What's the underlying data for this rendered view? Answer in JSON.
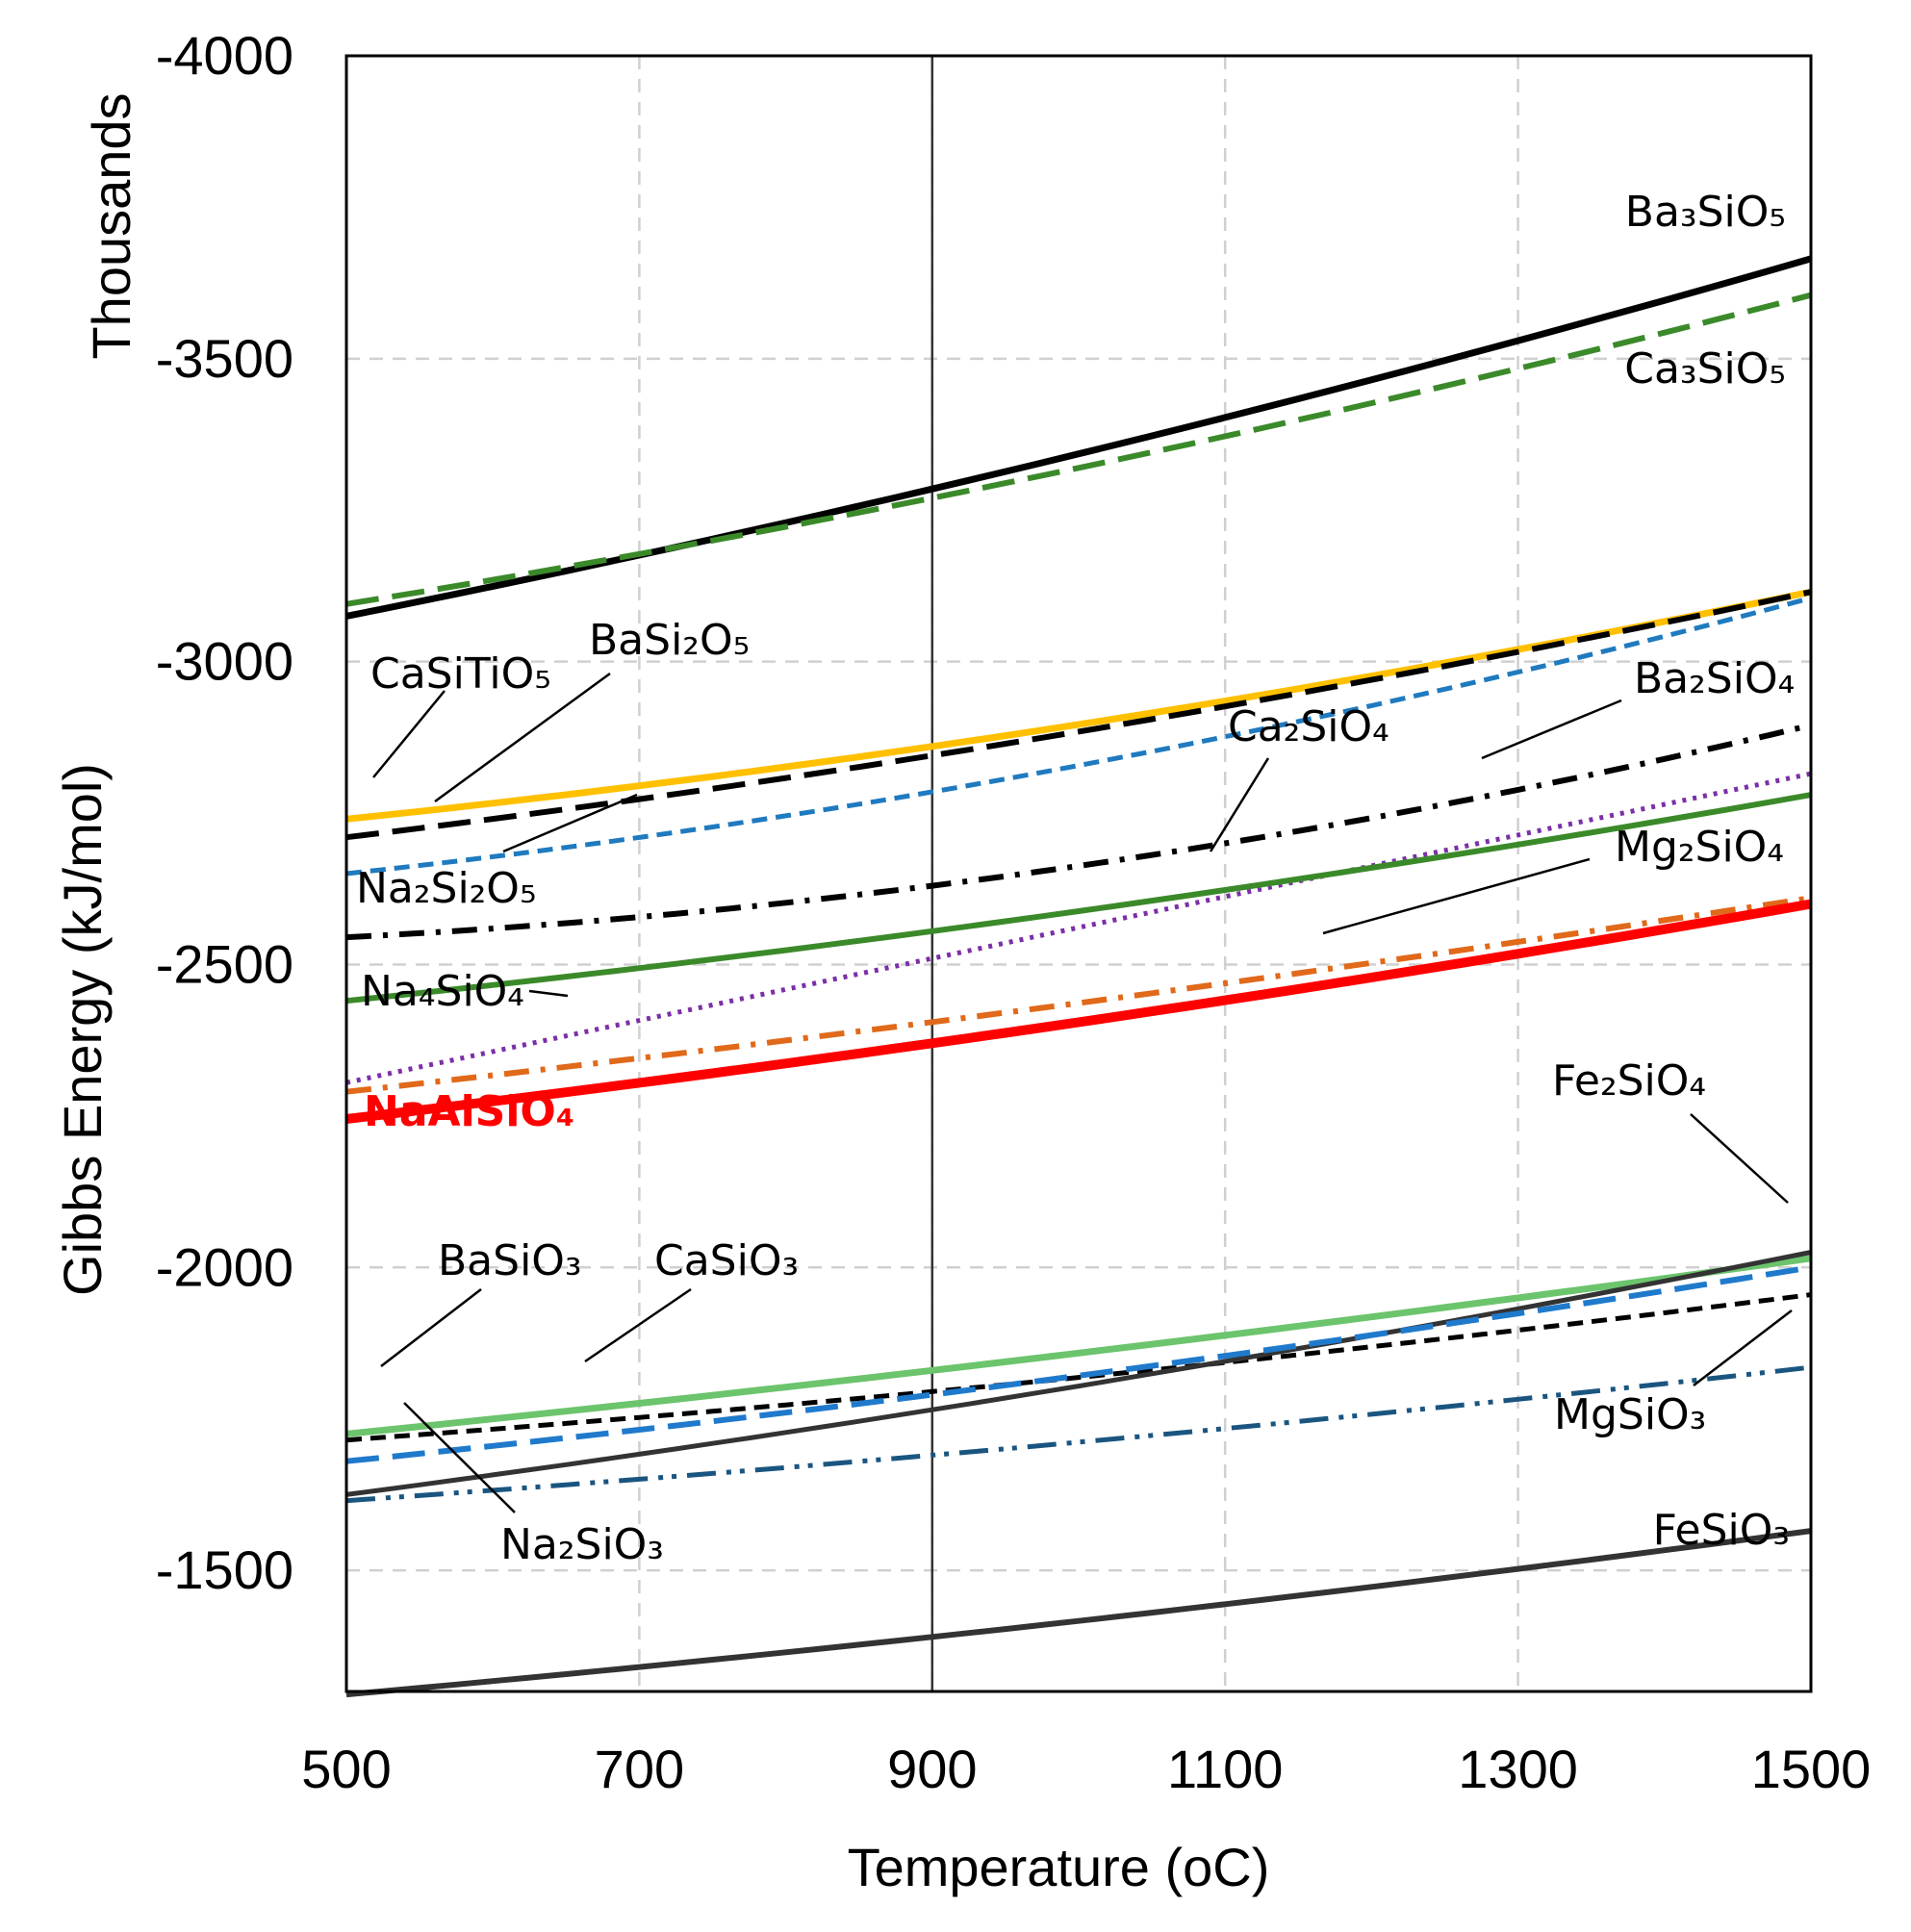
{
  "chart_data": {
    "type": "line",
    "title": "",
    "xlabel": "Temperature",
    "xlabel_unit": "(oC)",
    "ylabel": "Gibbs Energy (kJ/mol)",
    "y_multiplier_label": "Thousands",
    "xlim": [
      500,
      1500
    ],
    "ylim": [
      -1300,
      -4000
    ],
    "x_ticks": [
      500,
      700,
      900,
      1100,
      1300,
      1500
    ],
    "y_ticks": [
      -4000,
      -3500,
      -3000,
      -2500,
      -2000,
      -1500
    ],
    "grid": true,
    "reference_line_x": 900,
    "x": [
      500,
      900,
      1500
    ],
    "series": [
      {
        "name": "Ba3SiO5",
        "label": "Ba₃SiO₅",
        "values": [
          -3075,
          -3285,
          -3665
        ],
        "color": "#000000",
        "dash": "solid",
        "width": 7
      },
      {
        "name": "Ca3SiO5",
        "label": "Ca₃SiO₅",
        "values": [
          -3095,
          -3270,
          -3605
        ],
        "color": "#3b8a2a",
        "dash": "longdash",
        "width": 6
      },
      {
        "name": "CaSiTiO5",
        "label": "CaSiTiO₅",
        "values": [
          -2740,
          -2860,
          -3115
        ],
        "color": "#ffc000",
        "dash": "solid",
        "width": 7
      },
      {
        "name": "BaSi2O5",
        "label": "BaSi₂O₅",
        "values": [
          -2710,
          -2845,
          -3115
        ],
        "color": "#000000",
        "dash": "longdash",
        "width": 6
      },
      {
        "name": "Na2Si2O5",
        "label": "Na₂Si₂O₅",
        "values": [
          -2650,
          -2785,
          -3105
        ],
        "color": "#1f7abf",
        "dash": "dash",
        "width": 5
      },
      {
        "name": "Ba2SiO4",
        "label": "Ba₂SiO₄",
        "values": [
          -2545,
          -2630,
          -2895
        ],
        "color": "#000000",
        "dash": "dashdot",
        "width": 6
      },
      {
        "name": "Na4SiO4",
        "label": "Na₄SiO₄",
        "values": [
          -2305,
          -2510,
          -2815
        ],
        "color": "#7b2fa8",
        "dash": "dot",
        "width": 5
      },
      {
        "name": "Ca2SiO4",
        "label": "Ca₂SiO₄",
        "values": [
          -2440,
          -2555,
          -2780
        ],
        "color": "#3b8a2a",
        "dash": "solid",
        "width": 6
      },
      {
        "name": "Mg2SiO4",
        "label": "Mg₂SiO₄",
        "values": [
          -2290,
          -2405,
          -2610
        ],
        "color": "#e0691a",
        "dash": "dashdot",
        "width": 6
      },
      {
        "name": "NaAlSiO4",
        "label": "NaAlSiO₄",
        "values": [
          -2245,
          -2370,
          -2600
        ],
        "color": "#ff0000",
        "dash": "solid",
        "width": 10
      },
      {
        "name": "CaSiO3",
        "label": "CaSiO₃",
        "values": [
          -1725,
          -1830,
          -2015
        ],
        "color": "#6cc46c",
        "dash": "solid",
        "width": 7
      },
      {
        "name": "BaSiO3",
        "label": "BaSiO₃",
        "values": [
          -1715,
          -1795,
          -1955
        ],
        "color": "#000000",
        "dash": "dash",
        "width": 5
      },
      {
        "name": "Fe2SiO4",
        "label": "Fe₂SiO₄",
        "values": [
          -1625,
          -1765,
          -2025
        ],
        "color": "#333333",
        "dash": "solid",
        "width": 5
      },
      {
        "name": "Na2SiO3",
        "label": "Na₂SiO₃",
        "values": [
          -1680,
          -1790,
          -2000
        ],
        "color": "#1f7acc",
        "dash": "longdash",
        "width": 6
      },
      {
        "name": "MgSiO3",
        "label": "MgSiO₃",
        "values": [
          -1615,
          -1690,
          -1835
        ],
        "color": "#1a5580",
        "dash": "dashdotdot",
        "width": 5
      },
      {
        "name": "FeSiO3",
        "label": "FeSiO₃",
        "values": [
          -1295,
          -1390,
          -1565
        ],
        "color": "#333333",
        "dash": "solid",
        "width": 6
      }
    ],
    "annotations": [
      {
        "series": "CaSiTiO5",
        "text": "CaSiTiO₅"
      },
      {
        "series": "BaSi2O5",
        "text": "BaSi₂O₅"
      },
      {
        "series": "Na2Si2O5",
        "text": "Na₂Si₂O₅"
      },
      {
        "series": "Ca2SiO4",
        "text": "Ca₂SiO₄"
      },
      {
        "series": "Ba2SiO4",
        "text": "Ba₂SiO₄"
      },
      {
        "series": "Mg2SiO4",
        "text": "Mg₂SiO₄"
      },
      {
        "series": "Na4SiO4",
        "text": "Na₄SiO₄"
      },
      {
        "series": "NaAlSiO4",
        "text": "NaAlSiO₄"
      },
      {
        "series": "Ba3SiO5",
        "text": "Ba₃SiO₅"
      },
      {
        "series": "Ca3SiO5",
        "text": "Ca₃SiO₅"
      },
      {
        "series": "Fe2SiO4",
        "text": "Fe₂SiO₄"
      },
      {
        "series": "BaSiO3",
        "text": "BaSiO₃"
      },
      {
        "series": "CaSiO3",
        "text": "CaSiO₃"
      },
      {
        "series": "MgSiO3",
        "text": "MgSiO₃"
      },
      {
        "series": "Na2SiO3",
        "text": "Na₂SiO₃"
      },
      {
        "series": "FeSiO3",
        "text": "FeSiO₃"
      }
    ]
  }
}
